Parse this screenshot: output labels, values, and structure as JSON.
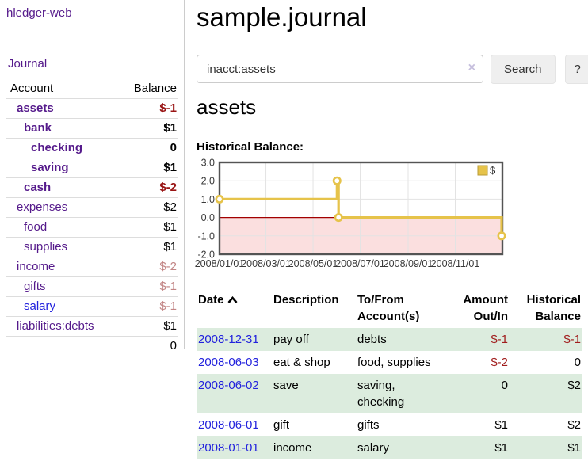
{
  "app": {
    "brand": "hledger-web",
    "nav_journal": "Journal"
  },
  "sidebar": {
    "header": {
      "account": "Account",
      "balance": "Balance"
    },
    "accounts": [
      {
        "name": "assets",
        "level": 1,
        "bold": true,
        "balance": "$-1",
        "balance_style": "neg-strong",
        "name_style": "purple"
      },
      {
        "name": "bank",
        "level": 2,
        "bold": true,
        "balance": "$1",
        "balance_style": "pos",
        "name_style": "purple"
      },
      {
        "name": "checking",
        "level": 3,
        "bold": true,
        "balance": "0",
        "balance_style": "pos",
        "name_style": "purple"
      },
      {
        "name": "saving",
        "level": 3,
        "bold": true,
        "balance": "$1",
        "balance_style": "pos",
        "name_style": "purple"
      },
      {
        "name": "cash",
        "level": 2,
        "bold": true,
        "balance": "$-2",
        "balance_style": "neg-strong",
        "name_style": "purple"
      },
      {
        "name": "expenses",
        "level": 1,
        "bold": false,
        "balance": "$2",
        "balance_style": "pos",
        "name_style": "purple"
      },
      {
        "name": "food",
        "level": 2,
        "bold": false,
        "balance": "$1",
        "balance_style": "pos",
        "name_style": "purple"
      },
      {
        "name": "supplies",
        "level": 2,
        "bold": false,
        "balance": "$1",
        "balance_style": "pos",
        "name_style": "purple"
      },
      {
        "name": "income",
        "level": 1,
        "bold": false,
        "balance": "$-2",
        "balance_style": "neg-soft",
        "name_style": "purple"
      },
      {
        "name": "gifts",
        "level": 2,
        "bold": false,
        "balance": "$-1",
        "balance_style": "neg-soft",
        "name_style": "purple"
      },
      {
        "name": "salary",
        "level": 2,
        "bold": false,
        "balance": "$-1",
        "balance_style": "neg-soft",
        "name_style": "blue"
      },
      {
        "name": "liabilities:debts",
        "level": 1,
        "bold": false,
        "balance": "$1",
        "balance_style": "pos",
        "name_style": "purple"
      }
    ],
    "total": "0"
  },
  "main": {
    "title": "sample.journal",
    "search": {
      "value": "inacct:assets",
      "clear_label": "×",
      "button_label": "Search",
      "help_label": "?"
    },
    "account_heading": "assets",
    "chart_heading": "Historical Balance:"
  },
  "chart_data": {
    "type": "line",
    "step": true,
    "title": "Historical Balance:",
    "series": [
      {
        "name": "$",
        "color": "#e6c34a",
        "points": [
          {
            "x": "2008-01-01",
            "y": 1.0
          },
          {
            "x": "2008-06-01",
            "y": 2.0
          },
          {
            "x": "2008-06-03",
            "y": 0.0
          },
          {
            "x": "2008-12-31",
            "y": -1.0
          }
        ]
      }
    ],
    "x_range": [
      "2008-01-01",
      "2009-01-01"
    ],
    "x_ticks": [
      "2008/01/01",
      "2008/03/01",
      "2008/05/01",
      "2008/07/01",
      "2008/09/01",
      "2008/11/01"
    ],
    "y_ticks": [
      "3.0",
      "2.0",
      "1.0",
      "0.0",
      "-1.0",
      "-2.0"
    ],
    "ylim": [
      -2.0,
      3.0
    ],
    "grid": true,
    "legend_position": "top-right",
    "legend_label": "$",
    "negative_region_color": "#fbdfdf",
    "zero_line_color": "#a20000",
    "frame_color": "#545454",
    "gridline_color": "#e3e3e3"
  },
  "register": {
    "columns": [
      "Date",
      "Description",
      "To/From\nAccount(s)",
      "Amount\nOut/In",
      "Historical\nBalance"
    ],
    "rows": [
      {
        "date": "2008-12-31",
        "description": "pay off",
        "accounts": "debts",
        "amount": "$-1",
        "amount_neg": true,
        "balance": "$-1",
        "balance_neg": true,
        "green": true
      },
      {
        "date": "2008-06-03",
        "description": "eat & shop",
        "accounts": "food, supplies",
        "amount": "$-2",
        "amount_neg": true,
        "balance": "0",
        "balance_neg": false,
        "green": false
      },
      {
        "date": "2008-06-02",
        "description": "save",
        "accounts": "saving,\nchecking",
        "amount": "0",
        "amount_neg": false,
        "balance": "$2",
        "balance_neg": false,
        "green": true
      },
      {
        "date": "2008-06-01",
        "description": "gift",
        "accounts": "gifts",
        "amount": "$1",
        "amount_neg": false,
        "balance": "$2",
        "balance_neg": false,
        "green": false
      },
      {
        "date": "2008-01-01",
        "description": "income",
        "accounts": "salary",
        "amount": "$1",
        "amount_neg": false,
        "balance": "$1",
        "balance_neg": false,
        "green": true
      }
    ]
  }
}
